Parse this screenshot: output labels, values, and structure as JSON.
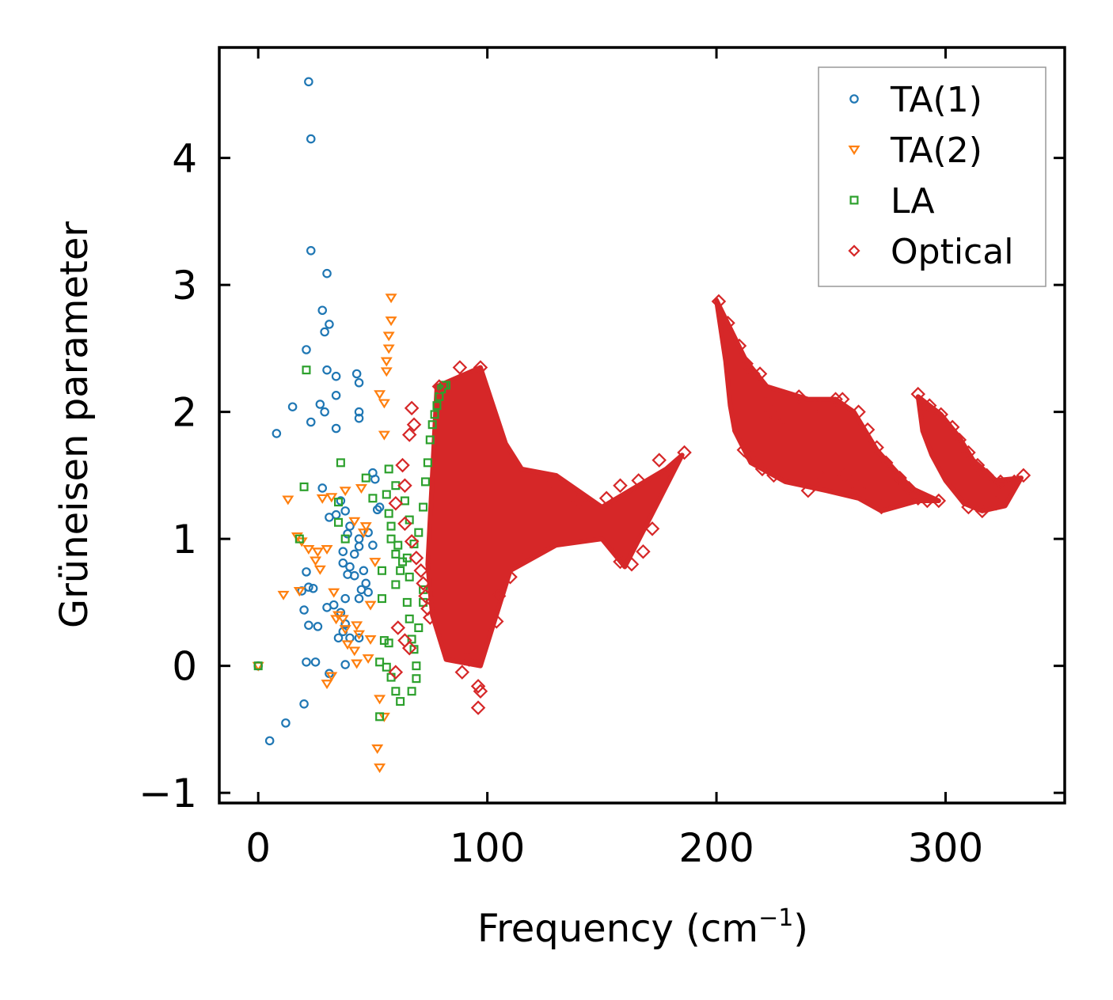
{
  "chart_data": {
    "type": "scatter",
    "title": "",
    "xlabel": "Frequency (cm",
    "xlabel_sup": "−1",
    "xlabel_end": ")",
    "ylabel": "Grüneisen parameter",
    "xlim": [
      -17,
      352
    ],
    "ylim": [
      -1.08,
      4.87
    ],
    "xticks": [
      0,
      100,
      200,
      300
    ],
    "xtick_labels": [
      "0",
      "100",
      "200",
      "300"
    ],
    "yticks": [
      -1,
      0,
      1,
      2,
      3,
      4
    ],
    "ytick_labels": [
      "−1",
      "0",
      "1",
      "2",
      "3",
      "4"
    ],
    "grid": false,
    "legend_position": "top-right",
    "series": [
      {
        "name": "TA(1)",
        "marker": "circle",
        "color": "#1f77b4",
        "points": [
          [
            22,
            4.6
          ],
          [
            23,
            4.15
          ],
          [
            23,
            3.27
          ],
          [
            30,
            3.09
          ],
          [
            28,
            2.8
          ],
          [
            31,
            2.69
          ],
          [
            29,
            2.63
          ],
          [
            21,
            2.49
          ],
          [
            30,
            2.33
          ],
          [
            34,
            2.28
          ],
          [
            43,
            2.3
          ],
          [
            44,
            2.23
          ],
          [
            34,
            2.13
          ],
          [
            15,
            2.04
          ],
          [
            27,
            2.06
          ],
          [
            29,
            2.0
          ],
          [
            44,
            2.0
          ],
          [
            44,
            1.95
          ],
          [
            23,
            1.92
          ],
          [
            8,
            1.83
          ],
          [
            34,
            1.87
          ],
          [
            28,
            1.4
          ],
          [
            36,
            1.3
          ],
          [
            38,
            1.22
          ],
          [
            34,
            1.19
          ],
          [
            31,
            1.17
          ],
          [
            40,
            1.1
          ],
          [
            39,
            1.04
          ],
          [
            44,
            1.0
          ],
          [
            37,
            0.9
          ],
          [
            44,
            0.94
          ],
          [
            37,
            0.81
          ],
          [
            40,
            0.78
          ],
          [
            42,
            0.71
          ],
          [
            39,
            0.72
          ],
          [
            21,
            0.74
          ],
          [
            22,
            0.62
          ],
          [
            19,
            0.59
          ],
          [
            24,
            0.61
          ],
          [
            30,
            0.46
          ],
          [
            33,
            0.48
          ],
          [
            20,
            0.44
          ],
          [
            38,
            0.53
          ],
          [
            44,
            0.53
          ],
          [
            36,
            0.42
          ],
          [
            38,
            0.33
          ],
          [
            22,
            0.32
          ],
          [
            26,
            0.31
          ],
          [
            37,
            0.27
          ],
          [
            40,
            0.22
          ],
          [
            35,
            0.22
          ],
          [
            44,
            0.22
          ],
          [
            21,
            0.03
          ],
          [
            25,
            0.03
          ],
          [
            38,
            0.01
          ],
          [
            31,
            -0.06
          ],
          [
            20,
            -0.3
          ],
          [
            12,
            -0.45
          ],
          [
            5,
            -0.59
          ],
          [
            0,
            0.0
          ],
          [
            45,
            0.6
          ],
          [
            47,
            0.65
          ],
          [
            42,
            0.88
          ],
          [
            46,
            0.75
          ],
          [
            48,
            0.58
          ],
          [
            50,
            1.52
          ],
          [
            51,
            1.47
          ],
          [
            52,
            1.23
          ],
          [
            48,
            1.05
          ],
          [
            50,
            0.95
          ],
          [
            53,
            1.25
          ]
        ]
      },
      {
        "name": "TA(2)",
        "marker": "triangle",
        "color": "#ff7f0e",
        "points": [
          [
            0,
            0.0
          ],
          [
            13,
            1.31
          ],
          [
            17,
            1.02
          ],
          [
            19,
            0.98
          ],
          [
            22,
            0.92
          ],
          [
            26,
            0.9
          ],
          [
            30,
            0.92
          ],
          [
            25,
            0.83
          ],
          [
            27,
            0.76
          ],
          [
            28,
            1.32
          ],
          [
            32,
            1.33
          ],
          [
            38,
            1.38
          ],
          [
            45,
            1.4
          ],
          [
            42,
            1.14
          ],
          [
            46,
            1.05
          ],
          [
            33,
            0.58
          ],
          [
            35,
            0.4
          ],
          [
            37,
            0.37
          ],
          [
            34,
            0.37
          ],
          [
            38,
            0.29
          ],
          [
            43,
            0.32
          ],
          [
            44,
            0.25
          ],
          [
            39,
            0.17
          ],
          [
            42,
            0.12
          ],
          [
            49,
            0.21
          ],
          [
            48,
            0.06
          ],
          [
            43,
            0.02
          ],
          [
            11,
            0.56
          ],
          [
            18,
            0.59
          ],
          [
            32,
            -0.08
          ],
          [
            30,
            -0.14
          ],
          [
            53,
            -0.26
          ],
          [
            55,
            -0.4
          ],
          [
            52,
            -0.65
          ],
          [
            53,
            -0.8
          ],
          [
            53,
            2.14
          ],
          [
            55,
            2.07
          ],
          [
            55,
            1.82
          ],
          [
            56,
            2.32
          ],
          [
            57,
            2.5
          ],
          [
            58,
            2.72
          ],
          [
            58,
            2.9
          ],
          [
            57,
            2.6
          ],
          [
            56,
            2.4
          ],
          [
            47,
            1.1
          ],
          [
            51,
            0.82
          ],
          [
            49,
            0.48
          ]
        ]
      },
      {
        "name": "LA",
        "marker": "square",
        "color": "#2ca02c",
        "points": [
          [
            0,
            0.0
          ],
          [
            21,
            2.33
          ],
          [
            18,
            1.0
          ],
          [
            20,
            1.41
          ],
          [
            36,
            1.6
          ],
          [
            35,
            1.29
          ],
          [
            35,
            1.13
          ],
          [
            38,
            1.0
          ],
          [
            47,
            1.48
          ],
          [
            50,
            1.32
          ],
          [
            54,
            0.75
          ],
          [
            54,
            0.53
          ],
          [
            55,
            0.2
          ],
          [
            57,
            0.18
          ],
          [
            53,
            0.03
          ],
          [
            56,
            -0.01
          ],
          [
            58,
            -0.09
          ],
          [
            60,
            -0.2
          ],
          [
            53,
            -0.4
          ],
          [
            62,
            -0.28
          ],
          [
            60,
            0.64
          ],
          [
            65,
            0.5
          ],
          [
            66,
            0.37
          ],
          [
            67,
            0.21
          ],
          [
            68,
            0.13
          ],
          [
            69,
            0.0
          ],
          [
            69,
            -0.1
          ],
          [
            67,
            -0.2
          ],
          [
            72,
            0.5
          ],
          [
            70,
            0.3
          ],
          [
            72,
            0.6
          ],
          [
            57,
            1.2
          ],
          [
            58,
            1.0
          ],
          [
            60,
            0.88
          ],
          [
            62,
            0.75
          ],
          [
            65,
            0.85
          ],
          [
            66,
            1.15
          ],
          [
            64,
            1.3
          ],
          [
            60,
            1.42
          ],
          [
            57,
            1.55
          ],
          [
            56,
            1.35
          ],
          [
            58,
            1.1
          ],
          [
            61,
            0.95
          ],
          [
            63,
            0.82
          ],
          [
            66,
            0.7
          ],
          [
            68,
            0.96
          ],
          [
            70,
            1.05
          ],
          [
            72,
            1.25
          ],
          [
            73,
            1.45
          ],
          [
            74,
            1.6
          ],
          [
            75,
            1.78
          ],
          [
            76,
            1.9
          ],
          [
            77,
            1.98
          ],
          [
            78,
            2.05
          ],
          [
            79,
            2.12
          ],
          [
            80,
            2.18
          ],
          [
            81,
            2.21
          ],
          [
            82,
            2.21
          ]
        ]
      },
      {
        "name": "Optical",
        "marker": "diamond",
        "color": "#d62728",
        "points": [
          [
            67,
            2.03
          ],
          [
            68,
            1.9
          ],
          [
            66,
            1.82
          ],
          [
            63,
            1.58
          ],
          [
            64,
            1.42
          ],
          [
            60,
            1.28
          ],
          [
            64,
            1.12
          ],
          [
            67,
            0.98
          ],
          [
            69,
            0.85
          ],
          [
            71,
            0.75
          ],
          [
            72,
            0.65
          ],
          [
            73,
            0.55
          ],
          [
            74,
            0.45
          ],
          [
            75,
            0.38
          ],
          [
            61,
            0.3
          ],
          [
            64,
            0.2
          ],
          [
            66,
            0.14
          ],
          [
            60,
            -0.05
          ],
          [
            79,
            2.2
          ],
          [
            88,
            2.35
          ],
          [
            97,
            2.35
          ],
          [
            96,
            -0.16
          ],
          [
            97,
            -0.2
          ],
          [
            96,
            -0.33
          ],
          [
            89,
            -0.05
          ],
          [
            90,
            0.06
          ],
          [
            92,
            0.05
          ],
          [
            104,
            0.35
          ],
          [
            105,
            0.55
          ],
          [
            110,
            0.7
          ],
          [
            114,
            0.85
          ],
          [
            128,
            1.46
          ],
          [
            140,
            1.3
          ],
          [
            152,
            1.32
          ],
          [
            158,
            1.42
          ],
          [
            166,
            1.46
          ],
          [
            175,
            1.62
          ],
          [
            186,
            1.68
          ],
          [
            158,
            0.82
          ],
          [
            163,
            0.8
          ],
          [
            168,
            0.9
          ],
          [
            172,
            1.08
          ],
          [
            201,
            2.87
          ],
          [
            205,
            2.7
          ],
          [
            210,
            2.52
          ],
          [
            213,
            2.38
          ],
          [
            216,
            2.3
          ],
          [
            219,
            2.3
          ],
          [
            222,
            2.15
          ],
          [
            224,
            2.0
          ],
          [
            227,
            1.9
          ],
          [
            230,
            1.85
          ],
          [
            236,
            2.12
          ],
          [
            244,
            2.05
          ],
          [
            252,
            2.1
          ],
          [
            255,
            2.1
          ],
          [
            262,
            2.0
          ],
          [
            266,
            1.86
          ],
          [
            270,
            1.72
          ],
          [
            274,
            1.6
          ],
          [
            280,
            1.48
          ],
          [
            284,
            1.4
          ],
          [
            288,
            1.32
          ],
          [
            292,
            1.3
          ],
          [
            297,
            1.3
          ],
          [
            288,
            2.14
          ],
          [
            293,
            2.05
          ],
          [
            298,
            1.98
          ],
          [
            303,
            1.88
          ],
          [
            306,
            1.78
          ],
          [
            310,
            1.68
          ],
          [
            314,
            1.58
          ],
          [
            318,
            1.5
          ],
          [
            324,
            1.45
          ],
          [
            330,
            1.45
          ],
          [
            334,
            1.5
          ],
          [
            322,
            1.28
          ],
          [
            316,
            1.22
          ],
          [
            310,
            1.25
          ],
          [
            212,
            1.7
          ],
          [
            210,
            1.85
          ],
          [
            215,
            1.65
          ],
          [
            220,
            1.55
          ],
          [
            225,
            1.5
          ],
          [
            240,
            1.38
          ],
          [
            246,
            1.48
          ],
          [
            256,
            1.5
          ],
          [
            262,
            1.4
          ],
          [
            272,
            1.25
          ]
        ]
      }
    ],
    "optical_regions": [
      {
        "xy": [
          [
            78,
            2.2
          ],
          [
            97,
            2.35
          ],
          [
            108,
            1.75
          ],
          [
            115,
            1.55
          ],
          [
            130,
            1.5
          ],
          [
            150,
            1.25
          ],
          [
            178,
            1.55
          ],
          [
            185,
            1.66
          ],
          [
            172,
            1.2
          ],
          [
            160,
            0.78
          ],
          [
            150,
            1.0
          ],
          [
            130,
            0.95
          ],
          [
            110,
            0.75
          ],
          [
            97,
            0.0
          ],
          [
            82,
            0.05
          ],
          [
            76,
            0.4
          ],
          [
            74,
            0.8
          ]
        ]
      },
      {
        "xy": [
          [
            200,
            2.88
          ],
          [
            213,
            2.4
          ],
          [
            222,
            2.2
          ],
          [
            240,
            2.1
          ],
          [
            252,
            2.1
          ],
          [
            260,
            2.0
          ],
          [
            270,
            1.7
          ],
          [
            285,
            1.4
          ],
          [
            297,
            1.3
          ],
          [
            288,
            1.3
          ],
          [
            272,
            1.22
          ],
          [
            262,
            1.32
          ],
          [
            248,
            1.38
          ],
          [
            230,
            1.45
          ],
          [
            215,
            1.6
          ],
          [
            208,
            1.85
          ],
          [
            206,
            2.05
          ],
          [
            204,
            2.4
          ]
        ]
      },
      {
        "xy": [
          [
            288,
            2.12
          ],
          [
            298,
            1.98
          ],
          [
            306,
            1.8
          ],
          [
            312,
            1.62
          ],
          [
            322,
            1.46
          ],
          [
            333,
            1.48
          ],
          [
            326,
            1.26
          ],
          [
            316,
            1.22
          ],
          [
            308,
            1.28
          ],
          [
            300,
            1.46
          ],
          [
            294,
            1.66
          ],
          [
            290,
            1.85
          ]
        ]
      }
    ]
  }
}
